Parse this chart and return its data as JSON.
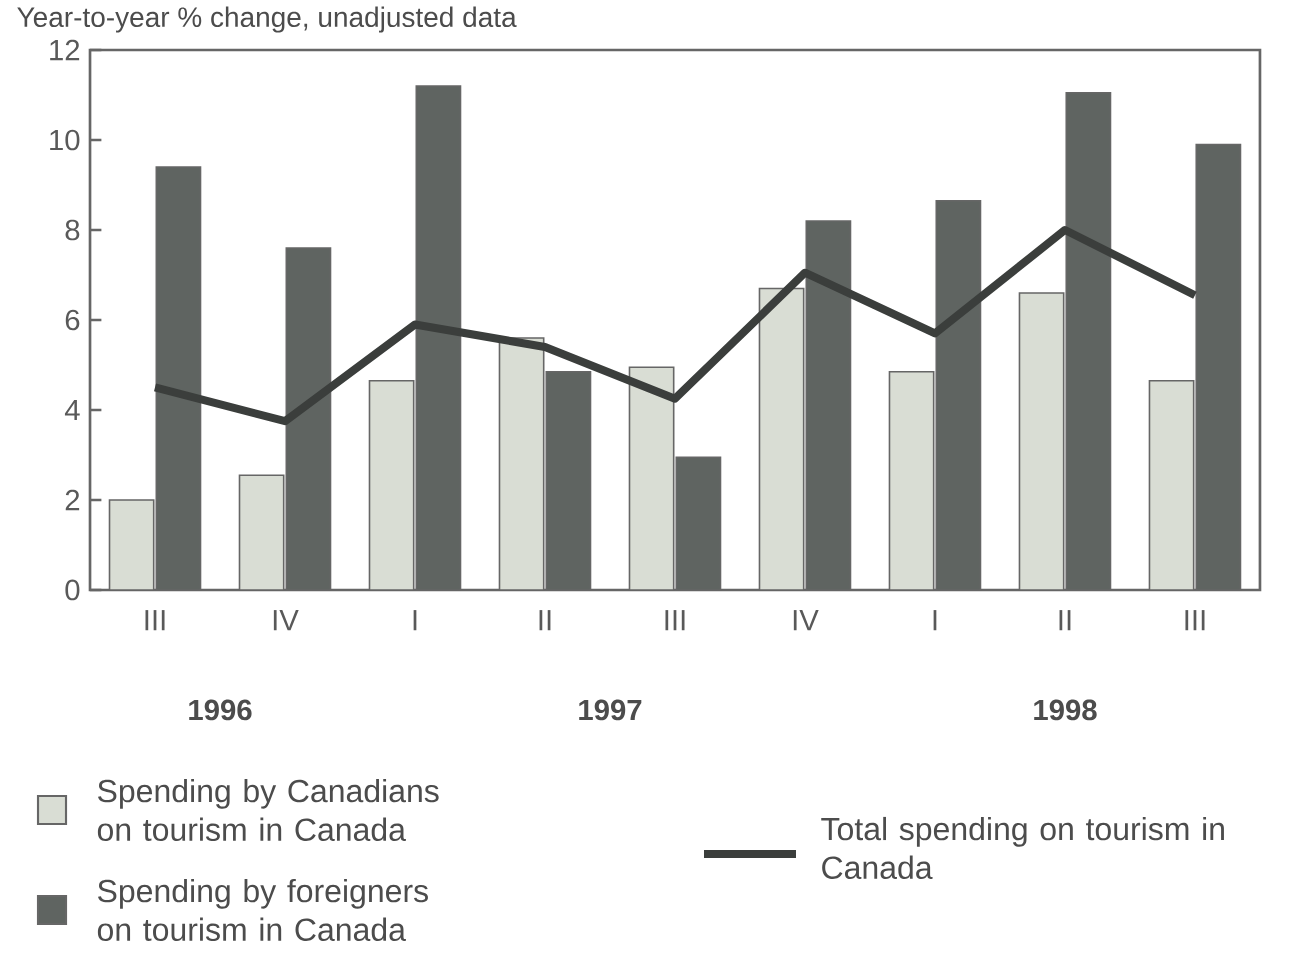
{
  "chart_data": {
    "type": "bar",
    "title": "Year-to-year % change, unadjusted data",
    "categories": [
      "III",
      "IV",
      "I",
      "II",
      "III",
      "IV",
      "I",
      "II",
      "III"
    ],
    "series": [
      {
        "name": "Spending by Canadians on tourism in Canada",
        "color": "#d9ddd4",
        "values": [
          2.0,
          2.55,
          4.65,
          5.6,
          4.95,
          6.7,
          4.85,
          6.6,
          4.65
        ]
      },
      {
        "name": "Spending by foreigners on tourism in Canada",
        "color": "#5f6461",
        "values": [
          9.4,
          7.6,
          11.2,
          4.85,
          2.95,
          8.2,
          8.65,
          11.05,
          9.9
        ]
      },
      {
        "name": "Total spending on tourism in Canada",
        "type": "line",
        "color": "#3b3e3c",
        "values": [
          4.5,
          3.75,
          5.9,
          5.4,
          4.25,
          7.05,
          5.7,
          8.0,
          6.55
        ]
      }
    ],
    "ylim": [
      0,
      12
    ],
    "yticks": [
      0,
      2,
      4,
      6,
      8,
      10,
      12
    ],
    "legend": "bottom",
    "annotations": [
      "1996",
      "1997",
      "1998"
    ]
  }
}
